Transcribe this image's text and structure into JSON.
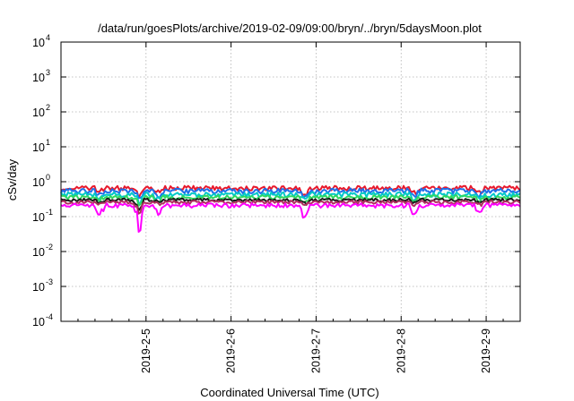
{
  "chart_data": {
    "type": "line",
    "title": "/data/run/goesPlots/archive/2019-02-09/09:00/bryn/../bryn/5daysMoon.plot",
    "xlabel": "Coordinated Universal Time (UTC)",
    "ylabel": "cSv/day",
    "yscale": "log",
    "ylim": [
      0.0001,
      10000
    ],
    "xlim": [
      4.0,
      9.4
    ],
    "grid": true,
    "y_ticks": [
      {
        "base": "10",
        "exp": "-4"
      },
      {
        "base": "10",
        "exp": "-3"
      },
      {
        "base": "10",
        "exp": "-2"
      },
      {
        "base": "10",
        "exp": "-1"
      },
      {
        "base": "10",
        "exp": "0"
      },
      {
        "base": "10",
        "exp": "1"
      },
      {
        "base": "10",
        "exp": "2"
      },
      {
        "base": "10",
        "exp": "3"
      },
      {
        "base": "10",
        "exp": "4"
      }
    ],
    "x_ticks": [
      {
        "value": 5,
        "label": "2019-2-5"
      },
      {
        "value": 6,
        "label": "2019-2-6"
      },
      {
        "value": 7,
        "label": "2019-2-7"
      },
      {
        "value": 8,
        "label": "2019-2-8"
      },
      {
        "value": 9,
        "label": "2019-2-9"
      }
    ],
    "series": [
      {
        "color": "#e8192c",
        "base": 0.66,
        "amp": 0.1,
        "dips": [
          [
            4.45,
            0.75
          ],
          [
            4.92,
            0.6
          ],
          [
            5.15,
            0.75
          ],
          [
            6.87,
            0.7
          ],
          [
            8.15,
            0.75
          ],
          [
            8.92,
            0.8
          ]
        ]
      },
      {
        "color": "#1f6fe8",
        "base": 0.55,
        "amp": 0.09,
        "dips": [
          [
            4.45,
            0.75
          ],
          [
            4.92,
            0.6
          ],
          [
            5.15,
            0.75
          ],
          [
            6.87,
            0.7
          ],
          [
            8.15,
            0.75
          ],
          [
            8.92,
            0.8
          ]
        ]
      },
      {
        "color": "#00c8c8",
        "base": 0.43,
        "amp": 0.07,
        "dips": [
          [
            4.45,
            0.8
          ],
          [
            4.92,
            0.6
          ],
          [
            5.15,
            0.8
          ],
          [
            6.87,
            0.75
          ],
          [
            8.15,
            0.8
          ],
          [
            8.92,
            0.85
          ]
        ]
      },
      {
        "color": "#30d860",
        "base": 0.36,
        "amp": 0.05,
        "dips": [
          [
            4.45,
            0.8
          ],
          [
            4.92,
            0.6
          ],
          [
            5.15,
            0.8
          ],
          [
            6.87,
            0.75
          ],
          [
            8.15,
            0.8
          ],
          [
            8.92,
            0.85
          ]
        ]
      },
      {
        "color": "#1a1a1a",
        "base": 0.3,
        "amp": 0.03,
        "dips": [
          [
            4.45,
            0.85
          ],
          [
            4.92,
            0.55
          ],
          [
            5.15,
            0.85
          ],
          [
            6.87,
            0.8
          ],
          [
            8.15,
            0.85
          ],
          [
            8.92,
            0.85
          ]
        ]
      },
      {
        "color": "#b03060",
        "base": 0.26,
        "amp": 0.03,
        "dips": [
          [
            4.45,
            0.85
          ],
          [
            4.92,
            0.5
          ],
          [
            5.15,
            0.85
          ],
          [
            6.87,
            0.8
          ],
          [
            8.15,
            0.85
          ],
          [
            8.92,
            0.85
          ]
        ]
      },
      {
        "color": "#ff00ff",
        "base": 0.21,
        "amp": 0.03,
        "dips": [
          [
            4.45,
            0.55
          ],
          [
            4.92,
            0.18
          ],
          [
            5.15,
            0.6
          ],
          [
            6.87,
            0.5
          ],
          [
            8.15,
            0.55
          ],
          [
            8.92,
            0.6
          ]
        ]
      }
    ]
  }
}
